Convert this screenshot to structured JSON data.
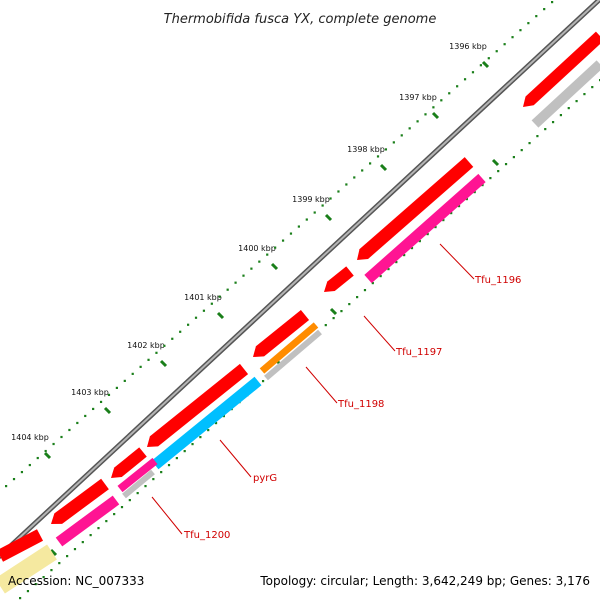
{
  "title": "Thermobifida fusca YX, complete genome",
  "scale_unit": "kbp",
  "scale_ticks": [
    1396,
    1397,
    1398,
    1399,
    1400,
    1401,
    1402,
    1403,
    1404
  ],
  "gene_labels": [
    "Tfu_1196",
    "Tfu_1197",
    "Tfu_1198",
    "pyrG",
    "Tfu_1200"
  ],
  "footer": {
    "accession": "Accession: NC_007333",
    "summary": "Topology: circular; Length: 3,642,249 bp; Genes: 3,176"
  },
  "colors": {
    "backbone": "#7a7a7a",
    "forward_gene": "#ff0000",
    "cds_pink": "#ff1493",
    "cds_orange": "#ff8c00",
    "cds_cyan": "#00bfff",
    "cds_gray": "#c0c0c0",
    "cds_yellow": "#f5e9a0",
    "dots": "#1a7f1a",
    "label": "#d00000"
  }
}
